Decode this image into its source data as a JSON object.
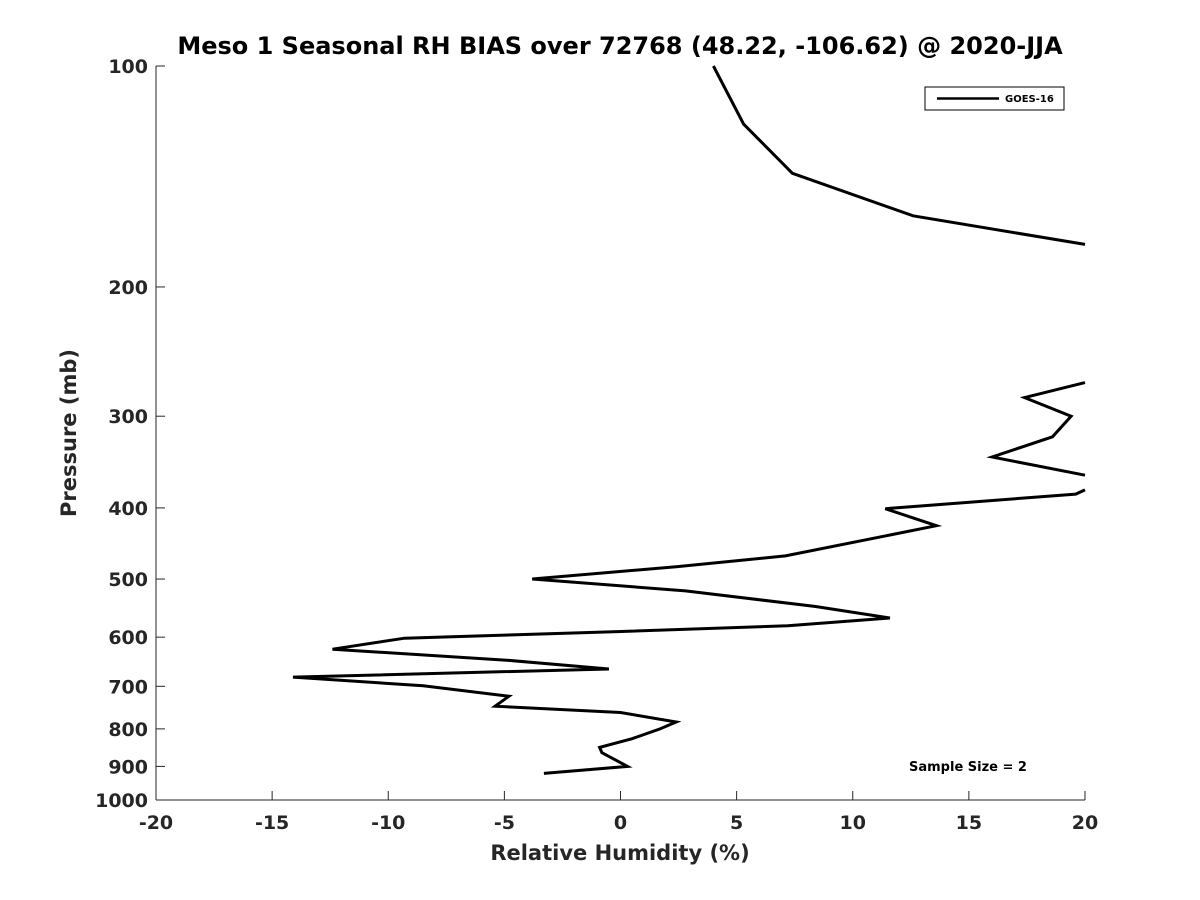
{
  "chart_data": {
    "type": "line",
    "title": "Meso 1 Seasonal RH BIAS over 72768 (48.22, -106.62) @ 2020-JJA",
    "xlabel": "Relative Humidity (%)",
    "ylabel": "Pressure (mb)",
    "xlim": [
      -20,
      20
    ],
    "ylim": [
      1000,
      100
    ],
    "y_scale": "log",
    "grid": false,
    "legend_position": "top-right",
    "x_ticks": [
      -20,
      -15,
      -10,
      -5,
      0,
      5,
      10,
      15,
      20
    ],
    "x_tick_labels": [
      "-20",
      "-15",
      "-10",
      "-5",
      "0",
      "5",
      "10",
      "15",
      "20"
    ],
    "y_ticks": [
      100,
      200,
      300,
      400,
      500,
      600,
      700,
      800,
      900,
      1000
    ],
    "y_tick_labels": [
      "100",
      "200",
      "300",
      "400",
      "500",
      "600",
      "700",
      "800",
      "900",
      "1000"
    ],
    "series": [
      {
        "name": "GOES-16",
        "color": "#000000",
        "segments": [
          [
            [
              4.0,
              100
            ],
            [
              5.3,
              120
            ],
            [
              7.4,
              140
            ],
            [
              12.6,
              160
            ],
            [
              20.0,
              175
            ]
          ],
          [
            [
              20.0,
              270
            ],
            [
              17.4,
              283
            ],
            [
              19.4,
              300
            ],
            [
              18.6,
              320
            ],
            [
              16.0,
              341
            ],
            [
              20.0,
              361
            ]
          ],
          [
            [
              20.0,
              378
            ],
            [
              19.6,
              383
            ],
            [
              11.4,
              401
            ],
            [
              13.6,
              423
            ],
            [
              7.1,
              465
            ],
            [
              2.4,
              481
            ],
            [
              -3.8,
              500
            ],
            [
              2.8,
              519
            ],
            [
              8.4,
              545
            ],
            [
              11.6,
              565
            ],
            [
              7.2,
              579
            ],
            [
              -0.3,
              590
            ],
            [
              -9.3,
              602
            ],
            [
              -12.4,
              623
            ],
            [
              -4.9,
              645
            ],
            [
              -0.5,
              663
            ],
            [
              -14.1,
              680
            ],
            [
              -8.5,
              699
            ],
            [
              -4.8,
              722
            ],
            [
              -5.4,
              745
            ],
            [
              0.0,
              760
            ],
            [
              2.4,
              783
            ],
            [
              1.7,
              800
            ],
            [
              0.5,
              825
            ],
            [
              -0.9,
              848
            ],
            [
              -0.8,
              862
            ],
            [
              0.3,
              900
            ],
            [
              -3.3,
              920
            ]
          ]
        ]
      }
    ],
    "annotations": [
      {
        "text": "Sample Size = 2"
      }
    ]
  }
}
